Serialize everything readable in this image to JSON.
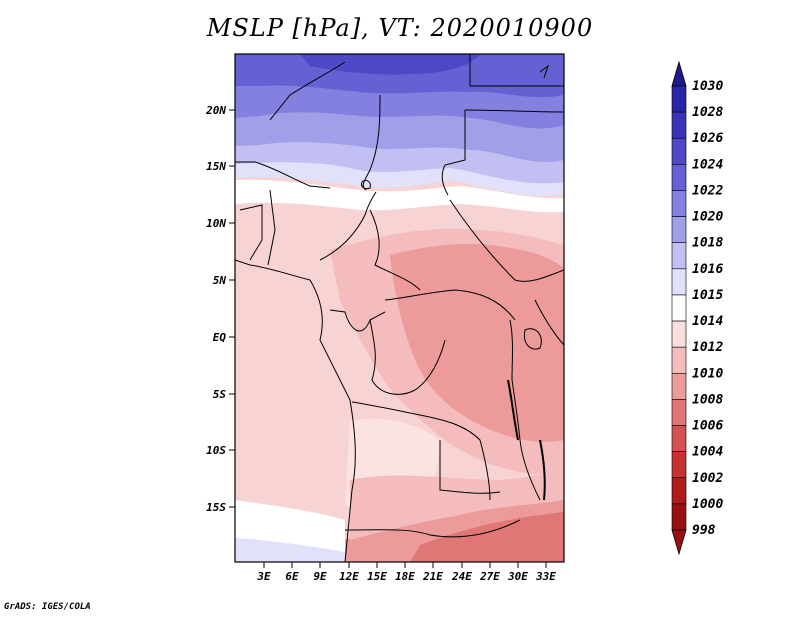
{
  "title": "MSLP [hPa], VT: 2020010900",
  "footer": "GrADS: IGES/COLA",
  "lat_labels": [
    "20N",
    "15N",
    "10N",
    "5N",
    "EQ",
    "5S",
    "10S",
    "15S"
  ],
  "lon_labels": [
    "3E",
    "6E",
    "9E",
    "12E",
    "15E",
    "18E",
    "21E",
    "24E",
    "27E",
    "30E",
    "33E"
  ],
  "colorbar": {
    "levels": [
      "1030",
      "1028",
      "1026",
      "1024",
      "1022",
      "1020",
      "1018",
      "1016",
      "1015",
      "1014",
      "1012",
      "1010",
      "1008",
      "1006",
      "1004",
      "1002",
      "1000",
      "998"
    ],
    "colors": [
      "#1f1a8c",
      "#2a24a6",
      "#3a33b8",
      "#4e48c6",
      "#6661d3",
      "#8480df",
      "#a29fe9",
      "#c2c0f3",
      "#e2e1fb",
      "#ffffff",
      "#fbdede",
      "#f4bcbc",
      "#ec9a9a",
      "#e07676",
      "#d45252",
      "#c43232",
      "#b01b1b",
      "#9a1010"
    ]
  },
  "colors": {
    "very_high": "#4a43c2",
    "high": "#8a85e2",
    "mid_high": "#c2c0f3",
    "neutral": "#ffffff",
    "low1": "#fbdede",
    "low2": "#f4bcbc",
    "low3": "#ec9a9a",
    "low4": "#e07676"
  }
}
